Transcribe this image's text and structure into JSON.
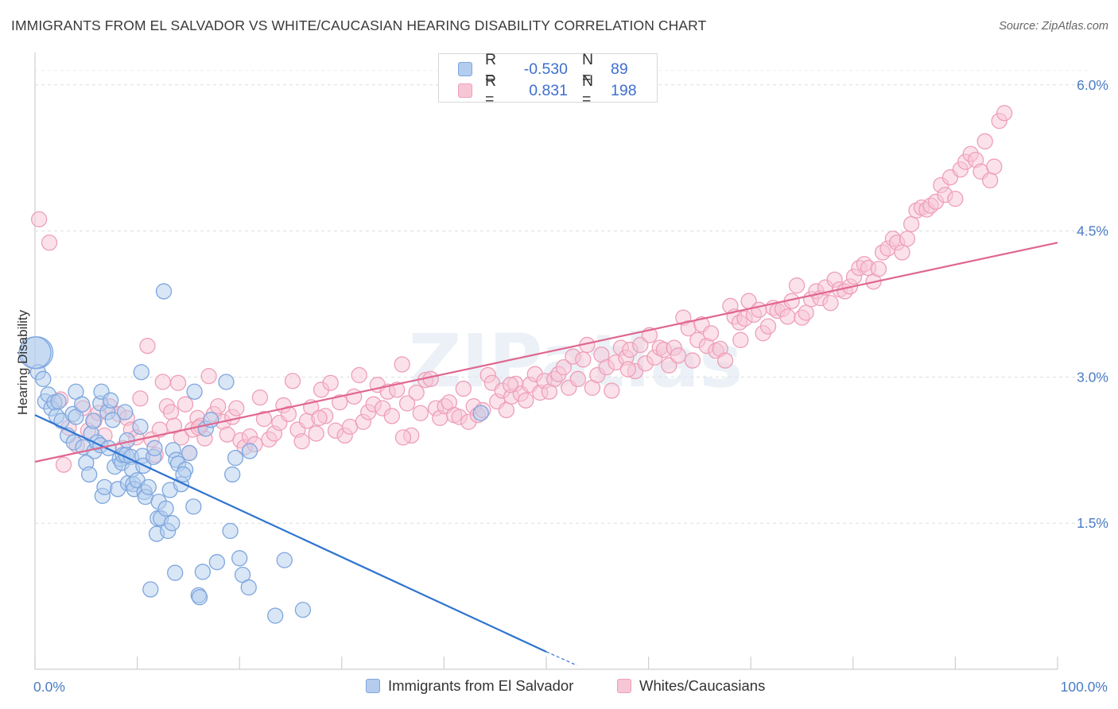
{
  "title": "IMMIGRANTS FROM EL SALVADOR VS WHITE/CAUCASIAN HEARING DISABILITY CORRELATION CHART",
  "source": "Source: ZipAtlas.com",
  "watermark": "ZIPatlas",
  "chart_data": {
    "type": "scatter",
    "ylabel": "Hearing Disability",
    "xlabel": "",
    "xlim": [
      0,
      100
    ],
    "ylim": [
      0.0,
      6.3
    ],
    "x_tick_labels": [
      "0.0%",
      "100.0%"
    ],
    "y_ticks": [
      1.5,
      3.0,
      4.5,
      6.0
    ],
    "y_tick_labels": [
      "1.5%",
      "3.0%",
      "4.5%",
      "6.0%"
    ],
    "grid": true,
    "legend": [
      {
        "swatch_color": "#b4cdee",
        "r_label": "R =",
        "r_value": "-0.530",
        "n_label": "N =",
        "n_value": "89"
      },
      {
        "swatch_color": "#f7c6d5",
        "r_label": "R =",
        "r_value": "0.831",
        "n_label": "N =",
        "n_value": "198"
      }
    ],
    "series": [
      {
        "name": "Immigrants from El Salvador",
        "color": "#7ea6de",
        "fill": "#b4cdee",
        "trend_color": "#2f74d0",
        "trend": {
          "x0": 0,
          "y0": 2.61,
          "x1": 50,
          "y1": 0.18,
          "dash_to_x": 53,
          "dash_to_y": 0.04
        },
        "points": [
          [
            0.2,
            3.25
          ],
          [
            0.3,
            3.05
          ],
          [
            0.8,
            2.98
          ],
          [
            1.0,
            2.75
          ],
          [
            1.3,
            2.82
          ],
          [
            1.6,
            2.68
          ],
          [
            1.9,
            2.74
          ],
          [
            2.1,
            2.6
          ],
          [
            2.3,
            2.75
          ],
          [
            2.6,
            2.55
          ],
          [
            3.2,
            2.4
          ],
          [
            3.7,
            2.62
          ],
          [
            3.8,
            2.33
          ],
          [
            4.0,
            2.59
          ],
          [
            4.0,
            2.85
          ],
          [
            4.6,
            2.72
          ],
          [
            4.7,
            2.28
          ],
          [
            5.5,
            2.42
          ],
          [
            5.8,
            2.24
          ],
          [
            5.0,
            2.12
          ],
          [
            5.3,
            2.0
          ],
          [
            5.7,
            2.55
          ],
          [
            6.1,
            2.33
          ],
          [
            6.4,
            2.3
          ],
          [
            6.4,
            2.73
          ],
          [
            6.5,
            2.85
          ],
          [
            6.6,
            1.78
          ],
          [
            6.8,
            1.87
          ],
          [
            7.1,
            2.64
          ],
          [
            7.2,
            2.27
          ],
          [
            7.4,
            2.76
          ],
          [
            7.6,
            2.56
          ],
          [
            7.8,
            2.08
          ],
          [
            8.1,
            1.85
          ],
          [
            8.3,
            2.16
          ],
          [
            8.5,
            2.12
          ],
          [
            8.8,
            2.64
          ],
          [
            8.6,
            2.2
          ],
          [
            8.9,
            2.2
          ],
          [
            9.0,
            2.35
          ],
          [
            9.1,
            1.91
          ],
          [
            9.4,
            2.18
          ],
          [
            9.5,
            2.05
          ],
          [
            9.6,
            1.9
          ],
          [
            9.7,
            1.85
          ],
          [
            10.0,
            1.94
          ],
          [
            10.3,
            2.49
          ],
          [
            10.5,
            2.19
          ],
          [
            10.6,
            2.09
          ],
          [
            10.4,
            3.05
          ],
          [
            10.7,
            1.82
          ],
          [
            10.8,
            1.77
          ],
          [
            11.1,
            1.87
          ],
          [
            11.3,
            0.82
          ],
          [
            11.6,
            2.18
          ],
          [
            11.7,
            2.27
          ],
          [
            11.9,
            1.39
          ],
          [
            12.0,
            1.55
          ],
          [
            12.1,
            1.72
          ],
          [
            12.3,
            1.55
          ],
          [
            12.6,
            3.88
          ],
          [
            12.8,
            1.65
          ],
          [
            13.0,
            1.42
          ],
          [
            13.2,
            1.84
          ],
          [
            13.4,
            1.5
          ],
          [
            13.5,
            2.25
          ],
          [
            13.7,
            0.99
          ],
          [
            13.8,
            2.15
          ],
          [
            14.0,
            2.11
          ],
          [
            14.3,
            1.9
          ],
          [
            14.7,
            2.05
          ],
          [
            14.5,
            2.0
          ],
          [
            15.1,
            2.22
          ],
          [
            15.5,
            1.67
          ],
          [
            15.6,
            2.85
          ],
          [
            16.0,
            0.76
          ],
          [
            16.1,
            0.74
          ],
          [
            16.4,
            1.0
          ],
          [
            16.7,
            2.47
          ],
          [
            17.2,
            2.56
          ],
          [
            17.8,
            1.1
          ],
          [
            18.7,
            2.95
          ],
          [
            19.1,
            1.42
          ],
          [
            19.3,
            2.0
          ],
          [
            19.6,
            2.17
          ],
          [
            20.0,
            1.14
          ],
          [
            20.3,
            0.97
          ],
          [
            21.0,
            2.24
          ],
          [
            20.9,
            0.84
          ],
          [
            23.5,
            0.55
          ],
          [
            24.4,
            1.12
          ],
          [
            26.2,
            0.61
          ],
          [
            43.6,
            2.63
          ],
          [
            0.0,
            3.25
          ]
        ]
      },
      {
        "name": "Whites/Caucasians",
        "color": "#ee9fb8",
        "fill": "#f7c6d5",
        "trend_color": "#e0678f",
        "trend": {
          "x0": 0,
          "y0": 2.13,
          "x1": 100,
          "y1": 4.38
        },
        "points": [
          [
            0.4,
            4.62
          ],
          [
            1.4,
            4.38
          ],
          [
            2.5,
            2.77
          ],
          [
            2.8,
            2.1
          ],
          [
            3.3,
            2.48
          ],
          [
            4.1,
            2.3
          ],
          [
            4.7,
            2.68
          ],
          [
            5.2,
            2.45
          ],
          [
            5.8,
            2.55
          ],
          [
            6.2,
            2.63
          ],
          [
            6.8,
            2.4
          ],
          [
            7.3,
            2.7
          ],
          [
            8.2,
            2.62
          ],
          [
            8.6,
            2.27
          ],
          [
            9.0,
            2.58
          ],
          [
            9.4,
            2.46
          ],
          [
            9.9,
            2.38
          ],
          [
            10.3,
            2.78
          ],
          [
            11.0,
            3.32
          ],
          [
            11.4,
            2.36
          ],
          [
            11.8,
            2.2
          ],
          [
            12.2,
            2.46
          ],
          [
            12.5,
            2.95
          ],
          [
            12.9,
            2.7
          ],
          [
            13.3,
            2.64
          ],
          [
            13.6,
            2.5
          ],
          [
            14.0,
            2.94
          ],
          [
            14.3,
            2.38
          ],
          [
            14.7,
            2.72
          ],
          [
            15.1,
            2.22
          ],
          [
            15.4,
            2.46
          ],
          [
            15.9,
            2.58
          ],
          [
            16.2,
            2.5
          ],
          [
            16.6,
            2.37
          ],
          [
            17.0,
            3.01
          ],
          [
            17.5,
            2.62
          ],
          [
            17.9,
            2.7
          ],
          [
            18.4,
            2.54
          ],
          [
            18.8,
            2.41
          ],
          [
            19.3,
            2.59
          ],
          [
            19.7,
            2.68
          ],
          [
            20.1,
            2.35
          ],
          [
            20.5,
            2.28
          ],
          [
            21.0,
            2.39
          ],
          [
            21.5,
            2.31
          ],
          [
            22.0,
            2.79
          ],
          [
            22.4,
            2.57
          ],
          [
            22.9,
            2.36
          ],
          [
            23.4,
            2.42
          ],
          [
            23.9,
            2.53
          ],
          [
            24.3,
            2.71
          ],
          [
            24.8,
            2.62
          ],
          [
            25.2,
            2.96
          ],
          [
            25.7,
            2.46
          ],
          [
            26.1,
            2.34
          ],
          [
            26.6,
            2.55
          ],
          [
            27.0,
            2.69
          ],
          [
            27.5,
            2.42
          ],
          [
            28.0,
            2.87
          ],
          [
            28.4,
            2.6
          ],
          [
            28.9,
            2.94
          ],
          [
            29.4,
            2.45
          ],
          [
            29.8,
            2.74
          ],
          [
            30.3,
            2.4
          ],
          [
            30.8,
            2.49
          ],
          [
            31.2,
            2.8
          ],
          [
            31.7,
            3.02
          ],
          [
            32.1,
            2.54
          ],
          [
            32.6,
            2.64
          ],
          [
            33.1,
            2.72
          ],
          [
            33.5,
            2.92
          ],
          [
            34.0,
            2.68
          ],
          [
            34.5,
            2.85
          ],
          [
            34.9,
            2.6
          ],
          [
            35.4,
            2.87
          ],
          [
            35.9,
            3.13
          ],
          [
            36.4,
            2.73
          ],
          [
            36.8,
            2.4
          ],
          [
            37.3,
            2.84
          ],
          [
            37.7,
            2.63
          ],
          [
            38.2,
            2.97
          ],
          [
            38.7,
            2.98
          ],
          [
            39.2,
            2.68
          ],
          [
            39.6,
            2.58
          ],
          [
            40.1,
            2.7
          ],
          [
            40.5,
            2.74
          ],
          [
            41.0,
            2.61
          ],
          [
            41.5,
            2.59
          ],
          [
            41.9,
            2.88
          ],
          [
            42.4,
            2.54
          ],
          [
            42.9,
            2.7
          ],
          [
            43.3,
            2.61
          ],
          [
            43.8,
            2.66
          ],
          [
            44.3,
            3.02
          ],
          [
            44.7,
            2.94
          ],
          [
            45.2,
            2.75
          ],
          [
            45.7,
            2.86
          ],
          [
            46.1,
            2.66
          ],
          [
            46.6,
            2.8
          ],
          [
            47.0,
            2.93
          ],
          [
            47.5,
            2.83
          ],
          [
            48.0,
            2.76
          ],
          [
            48.4,
            2.92
          ],
          [
            48.9,
            3.03
          ],
          [
            49.4,
            2.84
          ],
          [
            49.8,
            2.96
          ],
          [
            50.3,
            2.85
          ],
          [
            50.8,
            2.98
          ],
          [
            51.2,
            3.03
          ],
          [
            51.7,
            3.1
          ],
          [
            52.2,
            2.89
          ],
          [
            52.6,
            3.21
          ],
          [
            53.1,
            2.98
          ],
          [
            53.6,
            3.18
          ],
          [
            54.0,
            3.33
          ],
          [
            54.5,
            2.89
          ],
          [
            55.0,
            3.02
          ],
          [
            55.4,
            3.23
          ],
          [
            55.9,
            3.1
          ],
          [
            56.4,
            2.86
          ],
          [
            56.8,
            3.15
          ],
          [
            57.3,
            3.3
          ],
          [
            57.8,
            3.2
          ],
          [
            58.2,
            3.28
          ],
          [
            58.7,
            3.06
          ],
          [
            59.2,
            3.33
          ],
          [
            59.7,
            3.14
          ],
          [
            60.1,
            3.43
          ],
          [
            60.6,
            3.2
          ],
          [
            61.1,
            3.3
          ],
          [
            61.5,
            3.28
          ],
          [
            62.0,
            3.12
          ],
          [
            62.5,
            3.3
          ],
          [
            62.9,
            3.22
          ],
          [
            63.4,
            3.61
          ],
          [
            63.9,
            3.5
          ],
          [
            64.3,
            3.17
          ],
          [
            64.8,
            3.38
          ],
          [
            65.2,
            3.54
          ],
          [
            65.7,
            3.32
          ],
          [
            66.1,
            3.45
          ],
          [
            66.6,
            3.27
          ],
          [
            67.0,
            3.29
          ],
          [
            67.5,
            3.17
          ],
          [
            68.0,
            3.73
          ],
          [
            68.4,
            3.62
          ],
          [
            68.9,
            3.56
          ],
          [
            69.4,
            3.6
          ],
          [
            69.8,
            3.78
          ],
          [
            70.3,
            3.64
          ],
          [
            70.8,
            3.69
          ],
          [
            71.2,
            3.45
          ],
          [
            71.7,
            3.52
          ],
          [
            72.2,
            3.71
          ],
          [
            72.6,
            3.68
          ],
          [
            73.1,
            3.7
          ],
          [
            73.6,
            3.62
          ],
          [
            74.0,
            3.78
          ],
          [
            74.5,
            3.94
          ],
          [
            75.0,
            3.61
          ],
          [
            75.4,
            3.66
          ],
          [
            75.9,
            3.8
          ],
          [
            76.4,
            3.88
          ],
          [
            76.8,
            3.81
          ],
          [
            77.3,
            3.92
          ],
          [
            77.8,
            3.76
          ],
          [
            78.2,
            4.0
          ],
          [
            78.7,
            3.9
          ],
          [
            79.2,
            3.88
          ],
          [
            79.7,
            3.93
          ],
          [
            80.1,
            4.03
          ],
          [
            80.6,
            4.12
          ],
          [
            81.1,
            4.16
          ],
          [
            81.5,
            4.12
          ],
          [
            82.0,
            3.98
          ],
          [
            82.5,
            4.11
          ],
          [
            82.9,
            4.28
          ],
          [
            83.4,
            4.32
          ],
          [
            83.9,
            4.42
          ],
          [
            84.3,
            4.38
          ],
          [
            84.8,
            4.28
          ],
          [
            85.3,
            4.42
          ],
          [
            85.7,
            4.57
          ],
          [
            86.2,
            4.71
          ],
          [
            86.7,
            4.74
          ],
          [
            87.2,
            4.72
          ],
          [
            87.6,
            4.76
          ],
          [
            88.1,
            4.8
          ],
          [
            88.6,
            4.97
          ],
          [
            89.0,
            4.87
          ],
          [
            89.5,
            5.05
          ],
          [
            90.0,
            4.83
          ],
          [
            90.5,
            5.13
          ],
          [
            91.0,
            5.21
          ],
          [
            91.5,
            5.29
          ],
          [
            92.0,
            5.23
          ],
          [
            92.5,
            5.11
          ],
          [
            92.9,
            5.42
          ],
          [
            93.4,
            5.02
          ],
          [
            93.8,
            5.16
          ],
          [
            94.3,
            5.63
          ],
          [
            94.8,
            5.71
          ],
          [
            16.0,
            2.48
          ],
          [
            27.8,
            2.58
          ],
          [
            36.0,
            2.38
          ],
          [
            46.5,
            2.92
          ],
          [
            58.0,
            3.08
          ],
          [
            69.0,
            3.38
          ]
        ]
      }
    ]
  }
}
